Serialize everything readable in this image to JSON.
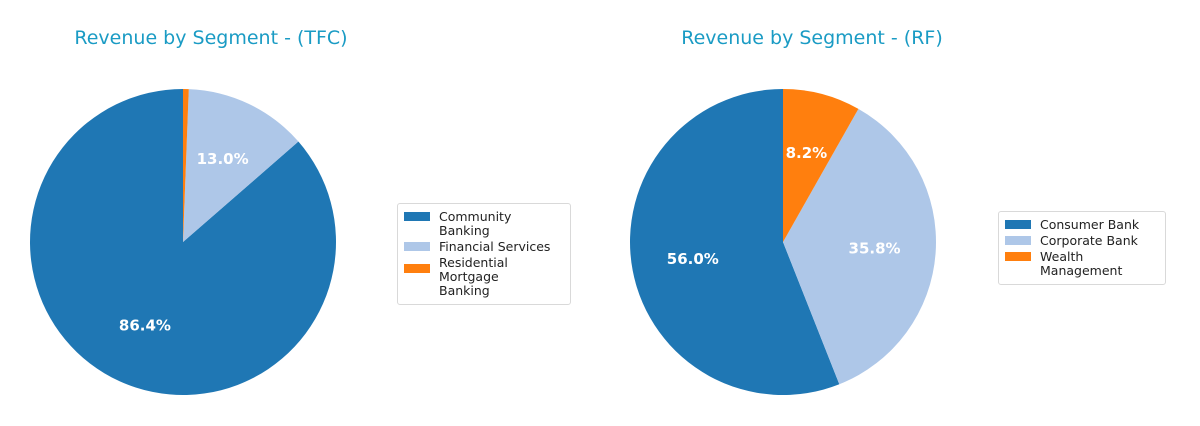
{
  "chart_data": [
    {
      "type": "pie",
      "title": "Revenue by Segment - (TFC)",
      "categories": [
        "Community Banking",
        "Financial Services",
        "Residential Mortgage\nBanking"
      ],
      "values": [
        86.4,
        13.0,
        0.6
      ],
      "labels": [
        "86.4%",
        "13.0%",
        ""
      ],
      "colors": [
        "#1f77b4",
        "#aec7e8",
        "#ff7f0e"
      ],
      "legend_position": "right"
    },
    {
      "type": "pie",
      "title": "Revenue by Segment - (RF)",
      "categories": [
        "Consumer Bank",
        "Corporate Bank",
        "Wealth Management"
      ],
      "values": [
        56.0,
        35.8,
        8.2
      ],
      "labels": [
        "56.0%",
        "35.8%",
        "8.2%"
      ],
      "colors": [
        "#1f77b4",
        "#aec7e8",
        "#ff7f0e"
      ],
      "legend_position": "right"
    }
  ],
  "charts": {
    "tfc": {
      "title": "Revenue by Segment - (TFC)",
      "legend": [
        "Community Banking",
        "Financial Services",
        "Residential Mortgage\nBanking"
      ]
    },
    "rf": {
      "title": "Revenue by Segment - (RF)",
      "legend": [
        "Consumer Bank",
        "Corporate Bank",
        "Wealth Management"
      ]
    }
  }
}
